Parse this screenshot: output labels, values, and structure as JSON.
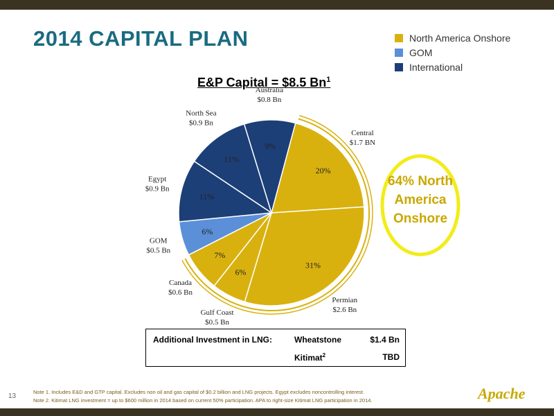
{
  "page": {
    "title": "2014 CAPITAL PLAN",
    "page_number": "13",
    "logo_text": "Apache"
  },
  "legend": [
    {
      "label": "North America Onshore",
      "color": "#d9b10f"
    },
    {
      "label": "GOM",
      "color": "#5b8fd8"
    },
    {
      "label": "International",
      "color": "#1d3f78"
    }
  ],
  "chart_title": {
    "text": "E&P Capital = $8.5 Bn",
    "sup": "1"
  },
  "callout": {
    "line1": "64% North",
    "line2": "America",
    "line3": "Onshore"
  },
  "chart_data": {
    "type": "pie",
    "title": "E&P Capital = $8.5 Bn",
    "slices": [
      {
        "name": "Central",
        "amount": "$1.7 BN",
        "pct": 20,
        "pct_label": "20%",
        "group": "North America Onshore"
      },
      {
        "name": "Permian",
        "amount": "$2.6 Bn",
        "pct": 31,
        "pct_label": "31%",
        "group": "North America Onshore"
      },
      {
        "name": "Gulf Coast",
        "amount": "$0.5 Bn",
        "pct": 6,
        "pct_label": "6%",
        "group": "North America Onshore"
      },
      {
        "name": "Canada",
        "amount": "$0.6 Bn",
        "pct": 7,
        "pct_label": "7%",
        "group": "North America Onshore"
      },
      {
        "name": "GOM",
        "amount": "$0.5 Bn",
        "pct": 6,
        "pct_label": "6%",
        "group": "GOM"
      },
      {
        "name": "Egypt",
        "amount": "$0.9 Bn",
        "pct": 11,
        "pct_label": "11%",
        "group": "International"
      },
      {
        "name": "North Sea",
        "amount": "$0.9 Bn",
        "pct": 11,
        "pct_label": "11%",
        "group": "International"
      },
      {
        "name": "Australia",
        "amount": "$0.8 Bn",
        "pct": 9,
        "pct_label": "9%",
        "group": "International"
      }
    ]
  },
  "lng_table": {
    "header": "Additional Investment in LNG:",
    "rows": [
      {
        "project": "Wheatstone",
        "sup": "",
        "value": "$1.4 Bn"
      },
      {
        "project": "Kitimat",
        "sup": "2",
        "value": "TBD"
      }
    ]
  },
  "notes": [
    "Note 1. Includes E&D and GTP capital. Excludes non oil and gas capital of $0.2 billion and LNG projects. Egypt excludes noncontrolling interest.",
    "Note 2. Kitimat LNG investment = up to $600 million in 2014 based on current 50% participation. APA to right-size Kitimat LNG participation in 2014."
  ]
}
